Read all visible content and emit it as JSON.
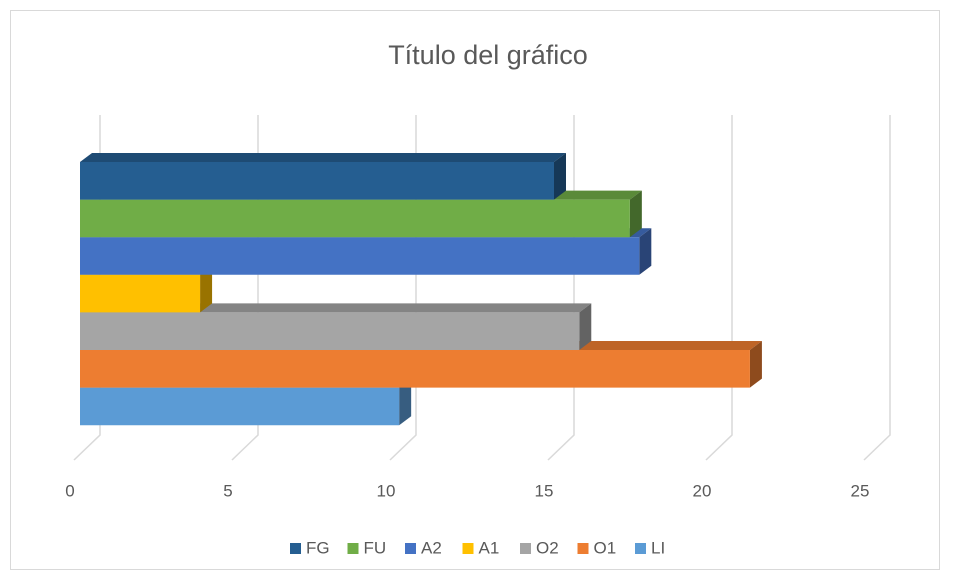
{
  "chart_data": {
    "type": "bar",
    "orientation": "horizontal",
    "title": "Título del gráfico",
    "categories": [
      null
    ],
    "series": [
      {
        "name": "FG",
        "color": "#255e91",
        "values": [
          15
        ]
      },
      {
        "name": "FU",
        "color": "#70ad47",
        "values": [
          17.4
        ]
      },
      {
        "name": "A2",
        "color": "#4472c4",
        "values": [
          17.7
        ]
      },
      {
        "name": "A1",
        "color": "#ffc000",
        "values": [
          3.8
        ]
      },
      {
        "name": "O2",
        "color": "#a5a5a5",
        "values": [
          15.8
        ]
      },
      {
        "name": "O1",
        "color": "#ed7d31",
        "values": [
          21.2
        ]
      },
      {
        "name": "LI",
        "color": "#5b9bd5",
        "values": [
          10.1
        ]
      }
    ],
    "xlim": [
      0,
      25
    ],
    "xticks": [
      0,
      5,
      10,
      15,
      20,
      25
    ],
    "grid": true,
    "legend": "bottom"
  }
}
